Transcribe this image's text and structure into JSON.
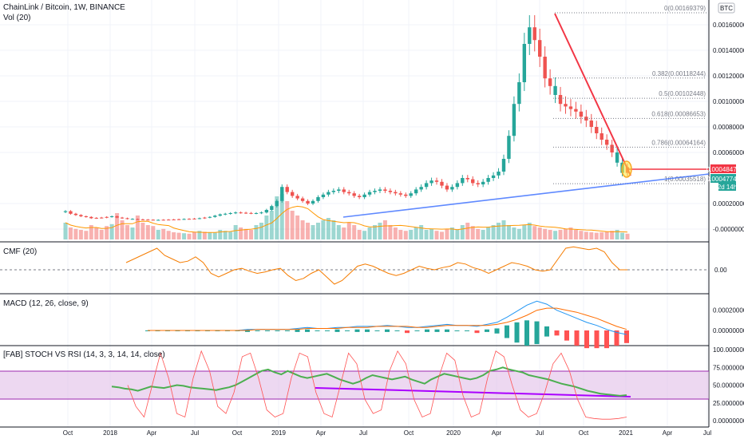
{
  "chart_data": {
    "type": "candlestick",
    "title": "ChainLink / Bitcoin, 1W, BINANCE",
    "currency_badge": "BTC",
    "volume_label": "Vol (20)",
    "price_ticks": [
      "0.00160000",
      "0.00140000",
      "0.00120000",
      "0.00100000",
      "0.00080000",
      "0.00060000",
      "0.00020000",
      "-0.00000000"
    ],
    "price_tick_values": [
      0.0016,
      0.0014,
      0.0012,
      0.001,
      0.0008,
      0.0006,
      0.0002,
      0.0
    ],
    "current_price": "0.00048477",
    "ma_price": "0.00047740",
    "countdown": "2d 14h",
    "fib_levels": [
      {
        "label": "0(0.00169379)",
        "value": 0.00169379
      },
      {
        "label": "0.382(0.00118244)",
        "value": 0.00118244
      },
      {
        "label": "0.5(0.00102448)",
        "value": 0.00102448
      },
      {
        "label": "0.618(0.00086653)",
        "value": 0.00086653
      },
      {
        "label": "0.786(0.00064164)",
        "value": 0.00064164
      },
      {
        "label": "1(0.00035518)",
        "value": 0.00035518
      }
    ],
    "x_ticks": [
      "Oct",
      "2018",
      "Apr",
      "Jul",
      "Oct",
      "2019",
      "Apr",
      "Jul",
      "Oct",
      "2020",
      "Apr",
      "Jul",
      "Oct",
      "2021",
      "Apr",
      "Jul"
    ],
    "closes": [
      0.00014,
      0.00012,
      0.00011,
      0.0001,
      9.5e-05,
      8.5e-05,
      8.8e-05,
      9e-05,
      9.5e-05,
      0.0001,
      9e-05,
      8.5e-05,
      8e-05,
      7.8e-05,
      7.6e-05,
      7.4e-05,
      7.3e-05,
      7.2e-05,
      7.2e-05,
      7.3e-05,
      7.4e-05,
      7.5e-05,
      7.7e-05,
      7.9e-05,
      8e-05,
      8.2e-05,
      8.5e-05,
      9e-05,
      9.5e-05,
      0.000105,
      0.000115,
      0.00012,
      0.000125,
      0.00013,
      0.000128,
      0.000126,
      0.000124,
      0.000125,
      0.00013,
      0.00015,
      0.00018,
      0.00022,
      0.00033,
      0.00029,
      0.00026,
      0.00024,
      0.00022,
      0.0002,
      0.00022,
      0.00025,
      0.00027,
      0.00029,
      0.0003,
      0.00031,
      0.00029,
      0.00028,
      0.00026,
      0.00025,
      0.00027,
      0.00029,
      0.0003,
      0.00031,
      0.0003,
      0.00029,
      0.00028,
      0.00027,
      0.00026,
      0.00028,
      0.00031,
      0.00033,
      0.00036,
      0.00038,
      0.00037,
      0.00034,
      0.00031,
      0.00033,
      0.00036,
      0.0004,
      0.00039,
      0.00036,
      0.00035,
      0.00037,
      0.0004,
      0.00042,
      0.00045,
      0.00055,
      0.00073,
      0.00098,
      0.00115,
      0.00145,
      0.00158,
      0.00148,
      0.00135,
      0.00118,
      0.00112,
      0.00105,
      0.00098,
      0.00096,
      0.00094,
      0.00092,
      0.00088,
      0.00085,
      0.0008,
      0.00075,
      0.0007,
      0.00066,
      0.0006,
      0.00052,
      0.00044,
      0.00048477
    ],
    "rising_candles": [
      0,
      9,
      13,
      18,
      23,
      26,
      28,
      29,
      30,
      31,
      32,
      33,
      37,
      38,
      39,
      40,
      41,
      42,
      48,
      49,
      50,
      51,
      52,
      53,
      58,
      59,
      60,
      61,
      67,
      68,
      69,
      70,
      71,
      75,
      76,
      77,
      81,
      82,
      83,
      84,
      85,
      86,
      87,
      88,
      89,
      90,
      95,
      107,
      108
    ],
    "volume": [
      0.35,
      0.25,
      0.22,
      0.2,
      0.18,
      0.3,
      0.25,
      0.2,
      0.28,
      0.32,
      0.55,
      0.4,
      0.3,
      0.25,
      0.5,
      0.35,
      0.3,
      0.28,
      0.2,
      0.22,
      0.18,
      0.15,
      0.14,
      0.13,
      0.12,
      0.15,
      0.18,
      0.16,
      0.15,
      0.14,
      0.2,
      0.18,
      0.16,
      0.3,
      0.25,
      0.22,
      0.2,
      0.3,
      0.35,
      0.5,
      0.6,
      0.9,
      0.95,
      0.8,
      0.6,
      0.5,
      0.4,
      0.35,
      0.3,
      0.35,
      0.4,
      0.45,
      0.4,
      0.3,
      0.25,
      0.35,
      0.3,
      0.2,
      0.18,
      0.25,
      0.3,
      0.35,
      0.4,
      0.3,
      0.25,
      0.2,
      0.18,
      0.2,
      0.25,
      0.3,
      0.2,
      0.22,
      0.18,
      0.16,
      0.22,
      0.25,
      0.2,
      0.3,
      0.35,
      0.28,
      0.22,
      0.2,
      0.25,
      0.3,
      0.35,
      0.4,
      0.3,
      0.25,
      0.22,
      0.3,
      0.35,
      0.28,
      0.25,
      0.22,
      0.2,
      0.18,
      0.2,
      0.22,
      0.25,
      0.2,
      0.18,
      0.16,
      0.15,
      0.14,
      0.15,
      0.16,
      0.18,
      0.2,
      0.14,
      0.12
    ],
    "indicators": [
      {
        "name": "CMF (20)",
        "zero_label": "0.00",
        "values": [
          0.1,
          0.15,
          0.2,
          0.25,
          0.3,
          0.2,
          0.15,
          0.1,
          0.12,
          0.18,
          0.1,
          -0.05,
          -0.1,
          -0.05,
          0.0,
          0.02,
          -0.02,
          -0.05,
          -0.03,
          0.0,
          0.02,
          -0.08,
          -0.15,
          -0.12,
          -0.05,
          0.0,
          -0.1,
          -0.2,
          -0.15,
          -0.05,
          0.05,
          0.08,
          0.05,
          0.0,
          -0.05,
          -0.08,
          -0.05,
          0.0,
          0.05,
          0.02,
          0.0,
          0.03,
          0.05,
          0.1,
          0.08,
          0.03,
          0.0,
          -0.05,
          0.0,
          0.05,
          0.1,
          0.08,
          0.05,
          0.0,
          -0.02,
          0.0,
          0.15,
          0.3,
          0.32,
          0.3,
          0.28,
          0.3,
          0.25,
          0.1,
          0.0,
          0.0
        ]
      },
      {
        "name": "MACD (12, 26, close, 9)",
        "ticks": [
          "0.00020000",
          "0.00000000"
        ],
        "macd": [
          0,
          0,
          0,
          0,
          0,
          0,
          0,
          0,
          0,
          0,
          1e-05,
          1e-05,
          1e-05,
          1e-05,
          1e-05,
          2e-05,
          3e-05,
          2e-05,
          2e-05,
          3e-05,
          3e-05,
          4e-05,
          4e-05,
          4e-05,
          5e-05,
          4e-05,
          3e-05,
          3e-05,
          4e-05,
          5e-05,
          6e-05,
          5e-05,
          5e-05,
          4e-05,
          6e-05,
          8e-05,
          0.00013,
          0.00019,
          0.00025,
          0.00029,
          0.00026,
          0.0002,
          0.00016,
          0.00012,
          8e-05,
          5e-05,
          1e-05,
          -2e-05,
          -4e-05
        ],
        "signal": [
          0,
          0,
          0,
          0,
          0,
          0,
          0,
          0,
          0,
          0,
          0,
          1e-05,
          1e-05,
          1e-05,
          1e-05,
          1e-05,
          2e-05,
          2e-05,
          2e-05,
          2e-05,
          3e-05,
          3e-05,
          3e-05,
          4e-05,
          4e-05,
          4e-05,
          4e-05,
          3e-05,
          3e-05,
          4e-05,
          5e-05,
          5e-05,
          5e-05,
          5e-05,
          5e-05,
          6e-05,
          8e-05,
          0.00011,
          0.00015,
          0.0002,
          0.00022,
          0.00022,
          0.0002,
          0.00018,
          0.00015,
          0.00012,
          8e-05,
          4e-05,
          1e-05
        ]
      },
      {
        "name": "[FAB] STOCH VS RSI (14, 3, 3, 14, 14, close)",
        "ticks": [
          "100.00000000",
          "75.00000000",
          "50.00000000",
          "25.00000000",
          "0.00000000"
        ],
        "rsi": [
          48,
          47,
          45,
          44,
          42,
          45,
          48,
          47,
          46,
          48,
          50,
          49,
          47,
          46,
          45,
          44,
          43,
          45,
          47,
          50,
          55,
          60,
          65,
          70,
          72,
          68,
          65,
          70,
          66,
          62,
          60,
          62,
          64,
          66,
          62,
          58,
          55,
          52,
          55,
          60,
          64,
          62,
          60,
          58,
          60,
          62,
          58,
          55,
          52,
          58,
          62,
          66,
          64,
          62,
          60,
          58,
          60,
          64,
          70,
          72,
          75,
          72,
          70,
          68,
          64,
          62,
          60,
          58,
          55,
          52,
          50,
          48,
          45,
          42,
          40,
          38,
          37,
          36,
          35,
          36
        ],
        "stoch": [
          50,
          20,
          5,
          50,
          95,
          60,
          10,
          5,
          60,
          98,
          70,
          20,
          10,
          40,
          90,
          95,
          60,
          15,
          5,
          10,
          60,
          95,
          90,
          40,
          10,
          5,
          50,
          95,
          80,
          30,
          10,
          15,
          70,
          98,
          80,
          30,
          5,
          10,
          60,
          95,
          85,
          35,
          5,
          10,
          60,
          98,
          90,
          50,
          15,
          5,
          10,
          40,
          80,
          95,
          70,
          30,
          5,
          3,
          2,
          2,
          3,
          5
        ]
      }
    ]
  }
}
